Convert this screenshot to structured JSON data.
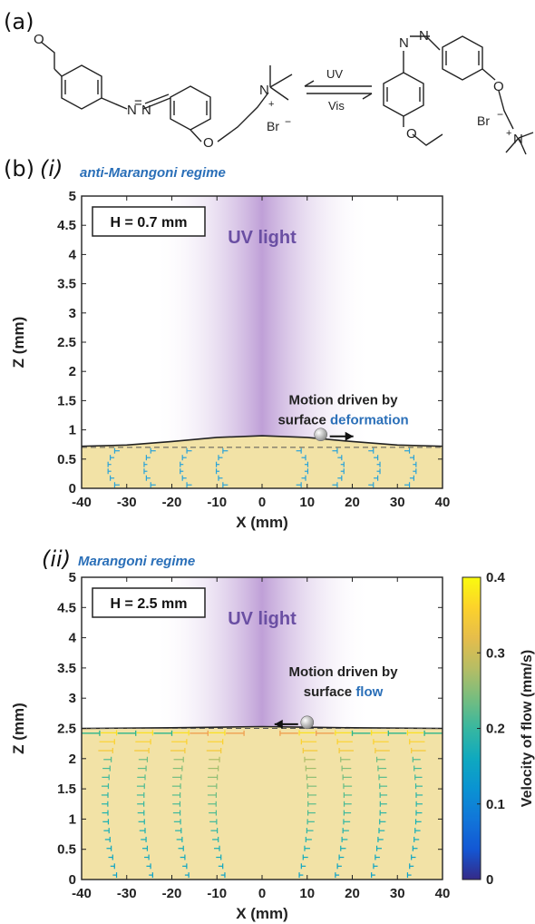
{
  "panel_a": {
    "label": "(a)",
    "reaction": {
      "forward": "UV",
      "backward": "Vis",
      "counterion": "Br",
      "charge_minus": "−",
      "charge_plus": "+"
    }
  },
  "panel_b": {
    "label": "(b)",
    "sub_i": "(i)",
    "sub_ii": "(ii)",
    "regime_i": "anti-Marangoni regime",
    "regime_ii": "Marangoni regime"
  },
  "colors": {
    "accent_blue": "#2a6fb8",
    "uv_purple": "#6a4fa3",
    "liquid": "#f2e2a6",
    "arrow_cyan": "#2aa3d8"
  },
  "chart_data": [
    {
      "type": "line",
      "title": "anti-Marangoni regime",
      "xlabel": "X (mm)",
      "ylabel": "Z (mm)",
      "xlim": [
        -40,
        40
      ],
      "ylim": [
        0,
        5
      ],
      "x_ticks": [
        "-40",
        "-30",
        "-20",
        "-10",
        "0",
        "10",
        "20",
        "30",
        "40"
      ],
      "y_ticks": [
        "0",
        "0.5",
        "1",
        "1.5",
        "2",
        "2.5",
        "3",
        "3.5",
        "4",
        "4.5",
        "5"
      ],
      "box_label": "H = 0.7 mm",
      "light_label": "UV light",
      "annotation": {
        "line1": "Motion driven by",
        "line2_prefix": "surface ",
        "line2_highlight": "deformation"
      },
      "baseline_z": 0.7,
      "surface": {
        "x": [
          -40,
          -30,
          -20,
          -10,
          0,
          10,
          20,
          30,
          40
        ],
        "z": [
          0.72,
          0.74,
          0.8,
          0.87,
          0.9,
          0.87,
          0.8,
          0.74,
          0.72
        ]
      },
      "particle": {
        "x": 13,
        "z": 0.92,
        "direction": "right"
      },
      "velocity_columns_x": [
        -32,
        -24,
        -16,
        -8,
        8,
        16,
        24,
        32
      ],
      "grid": false
    },
    {
      "type": "line",
      "title": "Marangoni regime",
      "xlabel": "X (mm)",
      "ylabel": "Z (mm)",
      "xlim": [
        -40,
        40
      ],
      "ylim": [
        0,
        5
      ],
      "x_ticks": [
        "-40",
        "-30",
        "-20",
        "-10",
        "0",
        "10",
        "20",
        "30",
        "40"
      ],
      "y_ticks": [
        "0",
        "0.5",
        "1",
        "1.5",
        "2",
        "2.5",
        "3",
        "3.5",
        "4",
        "4.5",
        "5"
      ],
      "box_label": "H = 2.5 mm",
      "light_label": "UV light",
      "annotation": {
        "line1": "Motion driven by",
        "line2_prefix": "surface ",
        "line2_highlight": "flow"
      },
      "baseline_z": 2.5,
      "surface": {
        "x": [
          -40,
          -20,
          -10,
          0,
          10,
          20,
          40
        ],
        "z": [
          2.5,
          2.51,
          2.52,
          2.53,
          2.52,
          2.51,
          2.5
        ]
      },
      "particle": {
        "x": 10,
        "z": 2.6,
        "direction": "left"
      },
      "velocity_columns_x": [
        -32,
        -24,
        -16,
        -8,
        8,
        16,
        24,
        32
      ],
      "colorbar": {
        "label": "Velocity of flow (mm/s)",
        "min": 0,
        "max": 0.4,
        "ticks": [
          "0",
          "0.1",
          "0.2",
          "0.3",
          "0.4"
        ]
      },
      "grid": false
    }
  ]
}
